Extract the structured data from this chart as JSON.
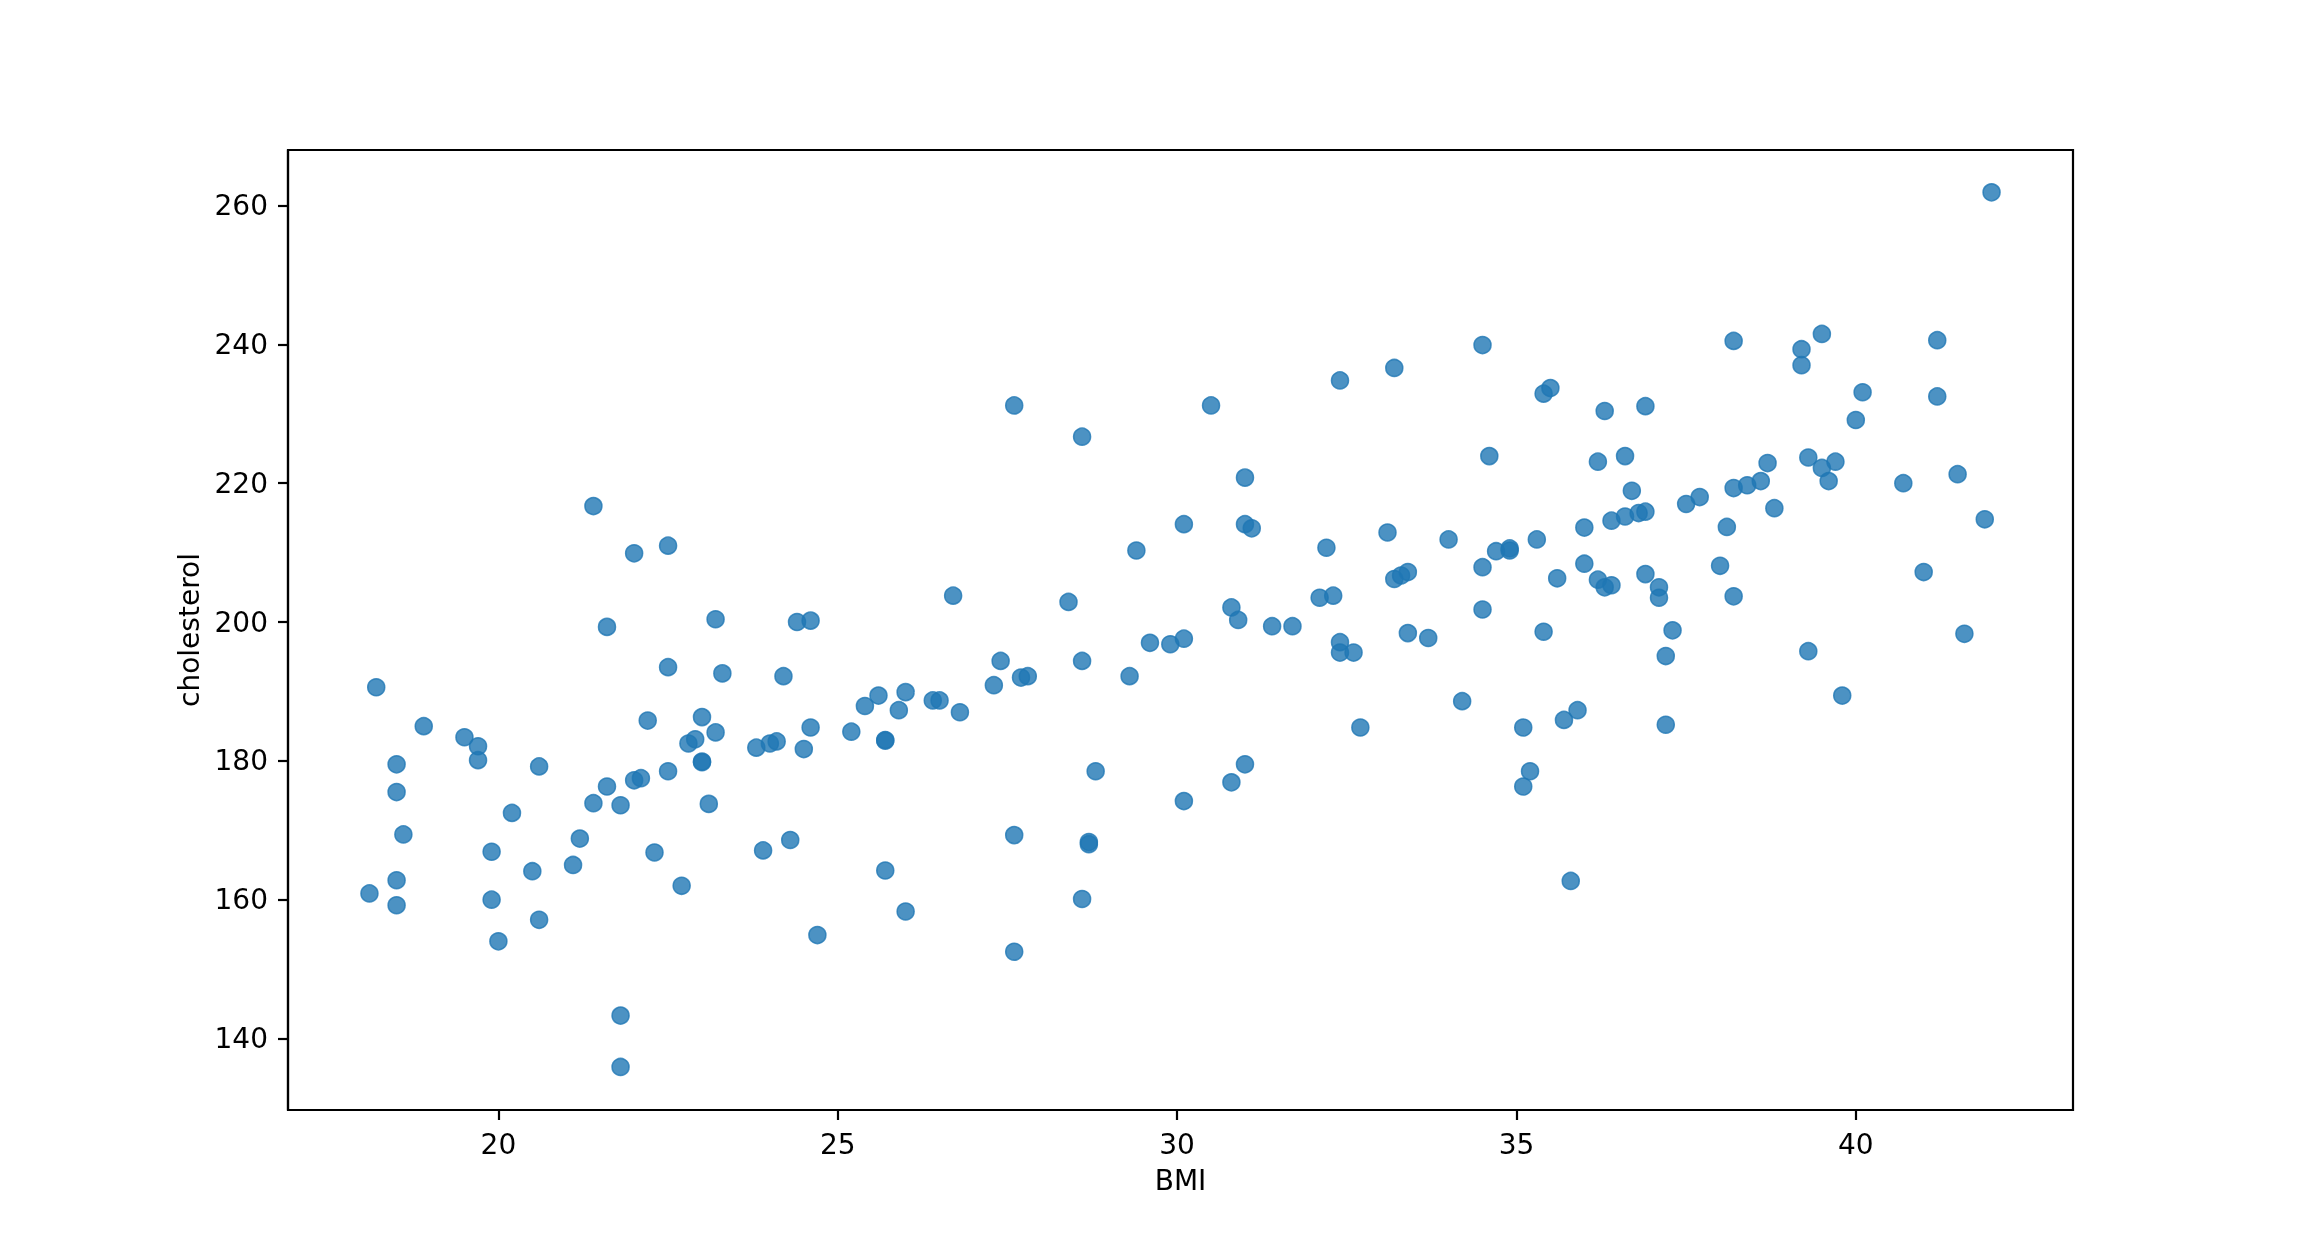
{
  "chart_data": {
    "type": "scatter",
    "xlabel": "BMI",
    "ylabel": "cholesterol",
    "x": [
      18.1,
      18.2,
      18.5,
      18.5,
      18.5,
      18.5,
      18.6,
      18.9,
      19.5,
      19.7,
      19.7,
      19.9,
      19.9,
      20.0,
      20.2,
      20.5,
      20.6,
      20.6,
      21.1,
      21.2,
      21.4,
      21.4,
      21.6,
      21.6,
      21.8,
      21.8,
      21.8,
      22.0,
      22.0,
      22.1,
      22.2,
      22.3,
      22.5,
      22.5,
      22.5,
      22.7,
      22.8,
      22.9,
      23.0,
      23.0,
      23.0,
      23.1,
      23.2,
      23.2,
      23.3,
      23.8,
      23.9,
      24.0,
      24.1,
      24.2,
      24.3,
      24.4,
      24.5,
      24.6,
      24.6,
      24.7,
      25.2,
      25.4,
      25.6,
      25.7,
      25.7,
      25.7,
      25.9,
      26.0,
      26.0,
      26.4,
      26.5,
      26.8,
      26.7,
      27.3,
      27.4,
      27.6,
      27.6,
      27.6,
      27.7,
      27.8,
      28.4,
      28.6,
      28.6,
      28.6,
      28.7,
      28.7,
      28.8,
      29.3,
      29.4,
      29.6,
      29.9,
      30.1,
      30.1,
      30.1,
      30.5,
      30.8,
      30.8,
      30.9,
      31.0,
      31.0,
      31.0,
      31.1,
      31.4,
      31.7,
      32.1,
      32.2,
      32.3,
      32.4,
      32.4,
      32.4,
      32.6,
      32.7,
      33.1,
      33.2,
      33.2,
      33.3,
      33.4,
      33.4,
      33.7,
      34.0,
      34.2,
      34.5,
      34.5,
      34.5,
      34.6,
      34.7,
      34.9,
      34.9,
      35.1,
      35.1,
      35.2,
      35.3,
      35.4,
      35.4,
      35.5,
      35.6,
      35.7,
      35.8,
      35.9,
      36.0,
      36.0,
      36.2,
      36.2,
      36.3,
      36.3,
      36.4,
      36.4,
      36.6,
      36.6,
      36.7,
      36.8,
      36.9,
      36.9,
      36.9,
      37.1,
      37.1,
      37.2,
      37.2,
      37.3,
      37.5,
      37.7,
      38.0,
      38.1,
      38.2,
      38.2,
      38.2,
      38.4,
      38.6,
      38.7,
      38.8,
      39.2,
      39.2,
      39.3,
      39.3,
      39.5,
      39.5,
      39.6,
      39.7,
      39.8,
      40.0,
      40.1,
      40.7,
      41.0,
      41.2,
      41.2,
      41.5,
      41.6,
      41.9,
      42.0
    ],
    "values": [
      160.9,
      190.6,
      179.5,
      175.5,
      162.8,
      159.2,
      169.4,
      185.0,
      183.4,
      182.1,
      180.1,
      166.9,
      160.0,
      154.0,
      172.5,
      164.1,
      179.2,
      157.1,
      165.0,
      168.8,
      216.7,
      173.9,
      199.3,
      176.3,
      173.6,
      143.3,
      135.9,
      209.9,
      177.2,
      177.5,
      185.8,
      166.8,
      211.0,
      193.5,
      178.5,
      162.0,
      182.5,
      183.1,
      186.3,
      179.9,
      179.8,
      173.8,
      200.4,
      184.1,
      192.6,
      181.9,
      167.1,
      182.5,
      182.8,
      192.2,
      168.6,
      200.0,
      181.7,
      200.2,
      184.8,
      154.9,
      184.2,
      187.9,
      189.4,
      183.0,
      182.9,
      164.2,
      187.3,
      189.9,
      158.3,
      188.7,
      188.7,
      187.0,
      203.8,
      190.9,
      194.4,
      231.2,
      169.3,
      152.5,
      192.0,
      192.2,
      202.9,
      226.7,
      194.4,
      160.1,
      168.3,
      168.0,
      178.5,
      192.2,
      210.3,
      197.0,
      196.8,
      214.1,
      197.6,
      174.2,
      231.2,
      202.1,
      176.9,
      200.3,
      220.8,
      214.1,
      179.5,
      213.5,
      199.4,
      199.4,
      203.5,
      210.7,
      203.8,
      234.8,
      197.1,
      195.6,
      195.6,
      184.8,
      212.9,
      236.6,
      206.2,
      206.7,
      207.2,
      198.4,
      197.7,
      211.9,
      188.6,
      239.9,
      207.9,
      201.8,
      223.9,
      210.2,
      210.6,
      210.3,
      184.8,
      176.3,
      178.5,
      211.9,
      232.9,
      198.6,
      233.7,
      206.3,
      185.9,
      162.7,
      187.3,
      213.6,
      208.4,
      223.1,
      206.1,
      230.4,
      205.0,
      214.6,
      205.3,
      223.9,
      215.2,
      218.9,
      215.7,
      231.1,
      215.9,
      206.9,
      205.0,
      203.5,
      195.1,
      185.2,
      198.8,
      217.0,
      218.0,
      208.1,
      213.7,
      240.5,
      219.3,
      203.7,
      219.7,
      220.3,
      222.9,
      216.4,
      239.3,
      237.0,
      223.7,
      195.8,
      241.5,
      222.2,
      220.3,
      223.1,
      189.4,
      229.1,
      233.1,
      220.0,
      207.2,
      240.6,
      232.5,
      221.3,
      198.3,
      214.8,
      261.9
    ],
    "color": "#1f77b4",
    "marker": "circle",
    "xlim": [
      16.9,
      43.2
    ],
    "ylim": [
      129.7,
      268.0
    ],
    "xticks": [
      20,
      25,
      30,
      35,
      40
    ],
    "yticks": [
      140,
      160,
      180,
      200,
      220,
      240,
      260
    ]
  }
}
